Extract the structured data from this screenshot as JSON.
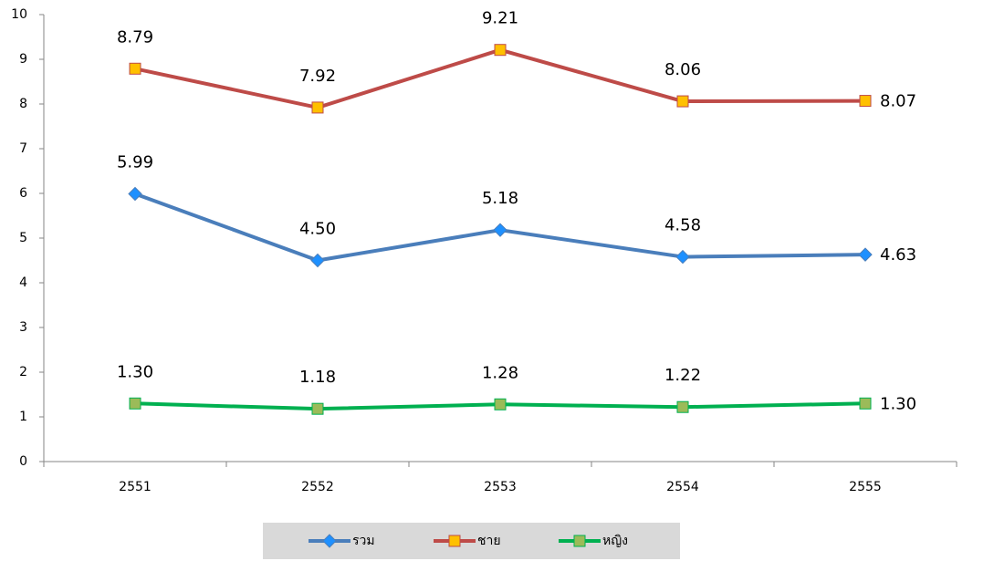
{
  "chart_data": {
    "type": "line",
    "categories": [
      "2551",
      "2552",
      "2553",
      "2554",
      "2555"
    ],
    "series": [
      {
        "name": "รวม",
        "color": "#4a7ebb",
        "marker": "diamond",
        "marker_color": "#1e90ff",
        "values": [
          5.99,
          4.5,
          5.18,
          4.58,
          4.63
        ],
        "value_labels": [
          "5.99",
          "4.50",
          "5.18",
          "4.58",
          "4.63"
        ]
      },
      {
        "name": "ชาย",
        "color": "#be4b48",
        "marker": "square",
        "marker_color": "#ffc000",
        "values": [
          8.79,
          7.92,
          9.21,
          8.06,
          8.07
        ],
        "value_labels": [
          "8.79",
          "7.92",
          "9.21",
          "8.06",
          "8.07"
        ]
      },
      {
        "name": "หญิง",
        "color": "#00b050",
        "marker": "square",
        "marker_color": "#9bbb59",
        "values": [
          1.3,
          1.18,
          1.28,
          1.22,
          1.3
        ],
        "value_labels": [
          "1.30",
          "1.18",
          "1.28",
          "1.22",
          "1.30"
        ]
      }
    ],
    "ylim": [
      0,
      10
    ],
    "yticks": [
      0,
      1,
      2,
      3,
      4,
      5,
      6,
      7,
      8,
      9,
      10
    ],
    "grid": false
  }
}
